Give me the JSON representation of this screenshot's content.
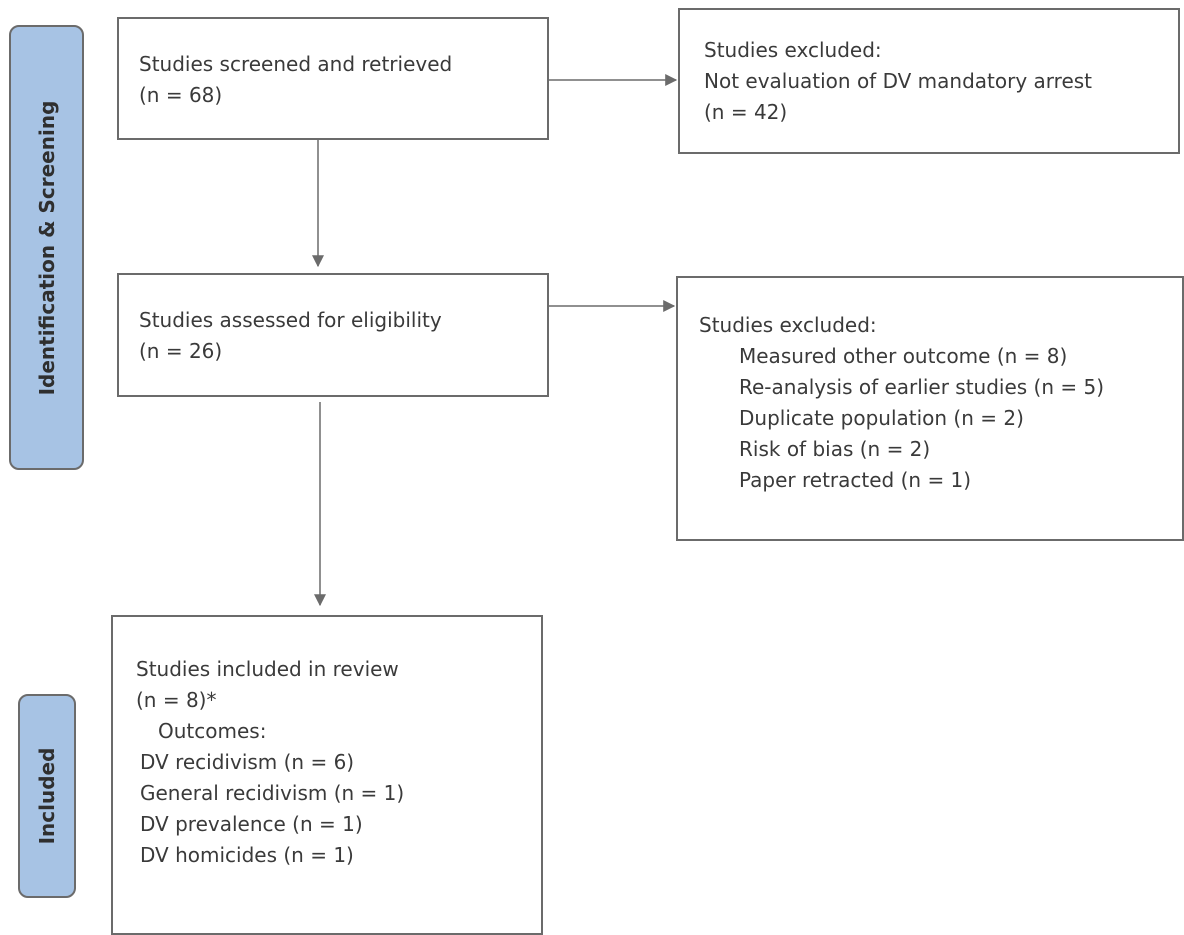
{
  "stages": {
    "identification": "Identification & Screening",
    "included": "Included"
  },
  "boxes": {
    "screened": {
      "line1": "Studies screened and retrieved",
      "line2": "(n = 68)"
    },
    "excluded1": {
      "line1": "Studies excluded:",
      "line2": "Not evaluation of DV mandatory arrest",
      "line3": "(n = 42)"
    },
    "eligibility": {
      "line1": "Studies assessed for eligibility",
      "line2": "(n = 26)"
    },
    "excluded2": {
      "heading": "Studies excluded:",
      "reasons": [
        "Measured other outcome (n = 8)",
        "Re-analysis of earlier studies (n = 5)",
        "Duplicate population (n = 2)",
        "Risk of bias (n = 2)",
        "Paper retracted (n = 1)"
      ]
    },
    "included": {
      "line1": "Studies included in review",
      "line2": "(n = 8)*",
      "outcomes_heading": "Outcomes:",
      "outcomes": [
        "DV recidivism (n = 6)",
        "General recidivism (n = 1)",
        "DV prevalence (n = 1)",
        "DV homicides (n = 1)"
      ]
    }
  },
  "colors": {
    "stage_fill": "#a7c3e4",
    "border": "#6b6b6b",
    "text": "#3a3a3a"
  }
}
